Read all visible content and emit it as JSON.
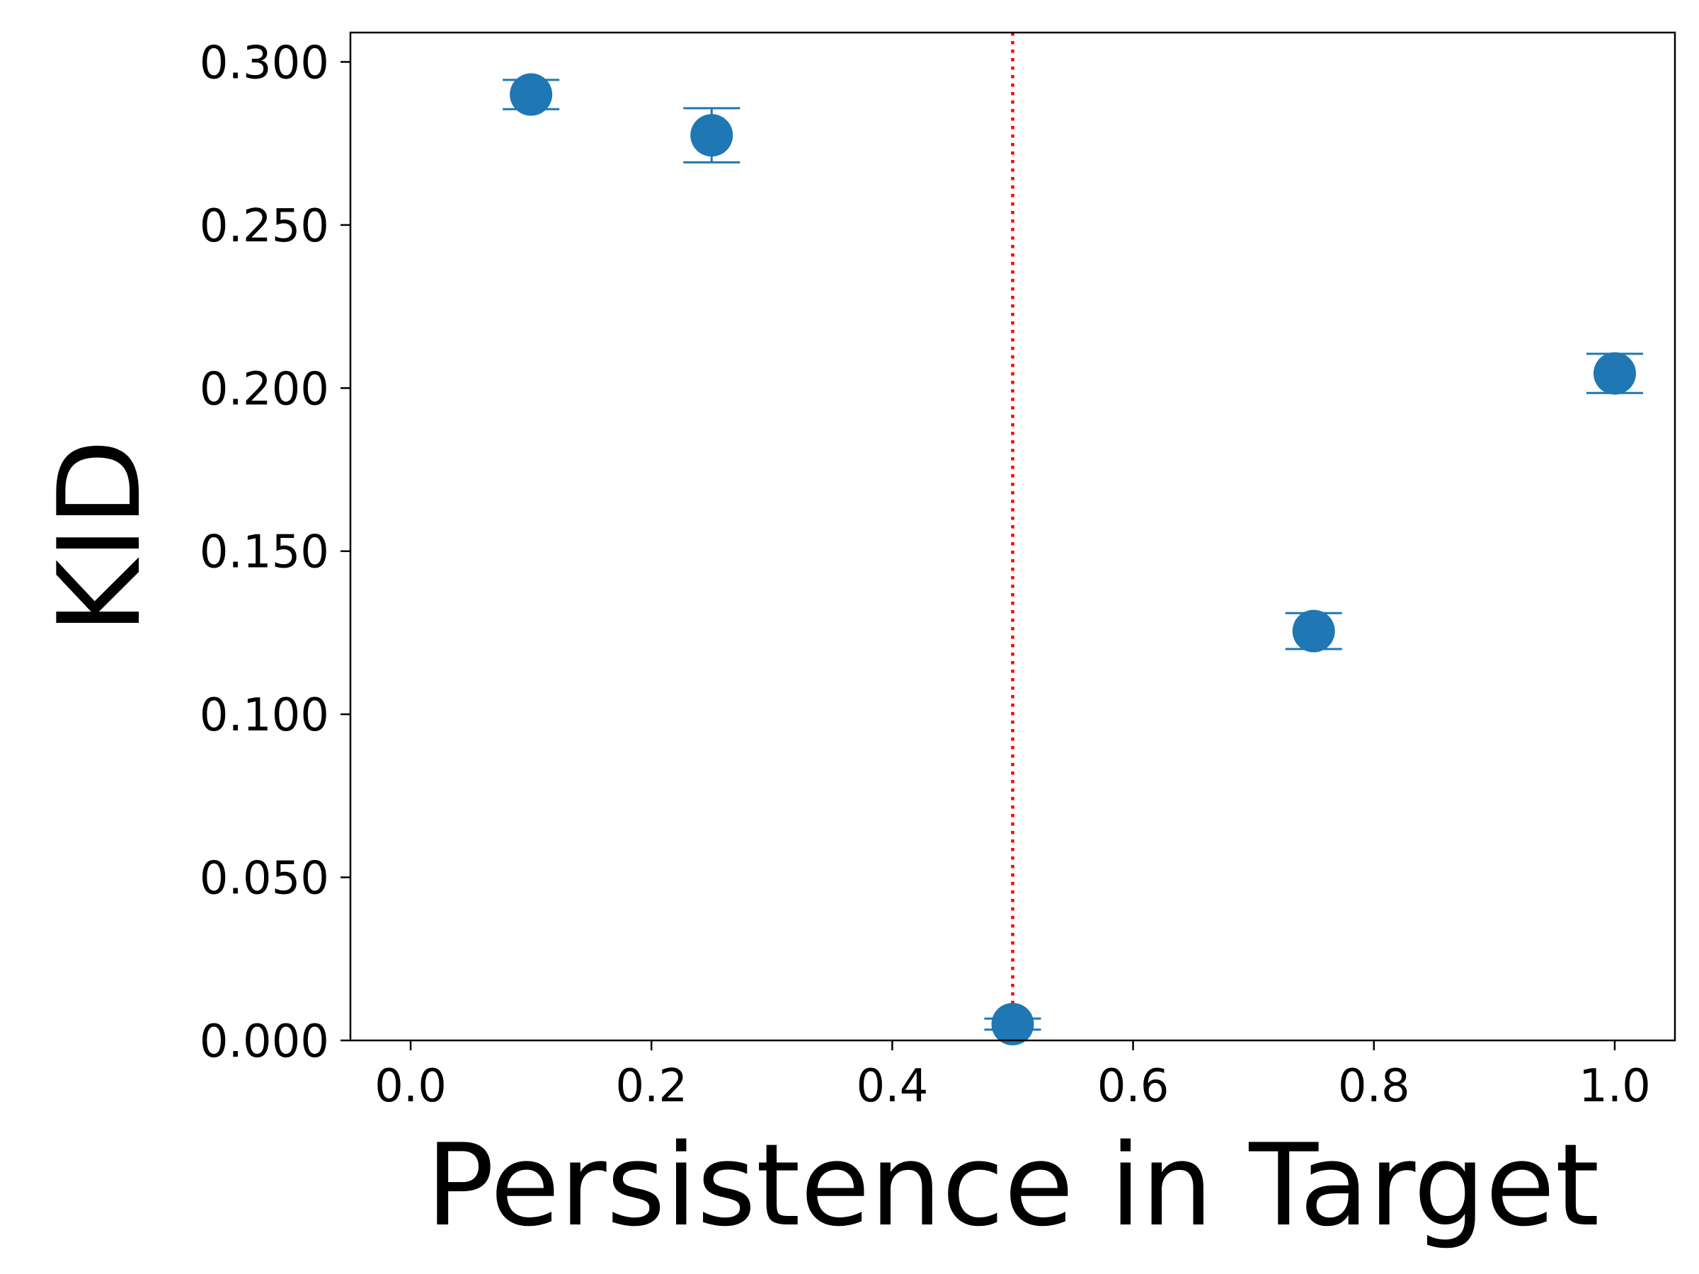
{
  "chart_data": {
    "type": "scatter",
    "title": "",
    "xlabel": "Persistence in Target",
    "ylabel": "KID",
    "xlim": [
      -0.05,
      1.05
    ],
    "ylim": [
      0.0,
      0.309
    ],
    "xticks": [
      0.0,
      0.2,
      0.4,
      0.6,
      0.8,
      1.0
    ],
    "xtick_labels": [
      "0.0",
      "0.2",
      "0.4",
      "0.6",
      "0.8",
      "1.0"
    ],
    "yticks": [
      0.0,
      0.05,
      0.1,
      0.15,
      0.2,
      0.25,
      0.3
    ],
    "ytick_labels": [
      "0.000",
      "0.050",
      "0.100",
      "0.150",
      "0.200",
      "0.250",
      "0.300"
    ],
    "grid": false,
    "series": [
      {
        "color": "#1f77b4",
        "x": [
          0.1,
          0.25,
          0.5,
          0.75,
          1.0
        ],
        "y": [
          0.29,
          0.2775,
          0.005,
          0.1255,
          0.2045
        ],
        "yerr": [
          0.0045,
          0.0083,
          0.0017,
          0.0055,
          0.006
        ]
      }
    ],
    "reference_line": {
      "orientation": "vertical",
      "x": 0.5,
      "style": "dotted",
      "color": "#ff0000"
    }
  }
}
